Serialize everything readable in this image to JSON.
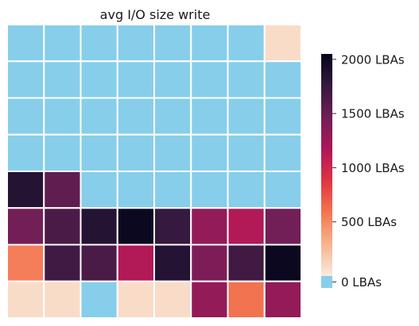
{
  "chart_data": {
    "type": "heatmap",
    "title": "avg I/O size write",
    "rows": 8,
    "cols": 8,
    "values": [
      [
        0,
        0,
        0,
        0,
        0,
        0,
        0,
        80
      ],
      [
        0,
        0,
        0,
        0,
        0,
        0,
        0,
        0
      ],
      [
        0,
        0,
        0,
        0,
        0,
        0,
        0,
        0
      ],
      [
        0,
        0,
        0,
        0,
        0,
        0,
        0,
        0
      ],
      [
        1850,
        1550,
        0,
        0,
        0,
        0,
        0,
        0
      ],
      [
        1450,
        1650,
        1850,
        2000,
        1750,
        1300,
        1150,
        1450
      ],
      [
        550,
        1700,
        1650,
        1150,
        1850,
        1400,
        1700,
        2000
      ],
      [
        80,
        80,
        0,
        80,
        80,
        1300,
        600,
        1300
      ]
    ],
    "zero_color": "#87ceeb",
    "colorbar": {
      "min": 0,
      "max": 2050,
      "ticks": [
        {
          "value": 0,
          "label": "0 LBAs"
        },
        {
          "value": 500,
          "label": "500 LBAs"
        },
        {
          "value": 1000,
          "label": "1000 LBAs"
        },
        {
          "value": 1500,
          "label": "1500 LBAs"
        },
        {
          "value": 2000,
          "label": "2000 LBAs"
        }
      ],
      "gradient": [
        "#faebdd",
        "#f6b48f",
        "#f37651",
        "#e13342",
        "#ad1759",
        "#701f57",
        "#35193e",
        "#03051a"
      ]
    },
    "grid": false,
    "legend": "right"
  }
}
